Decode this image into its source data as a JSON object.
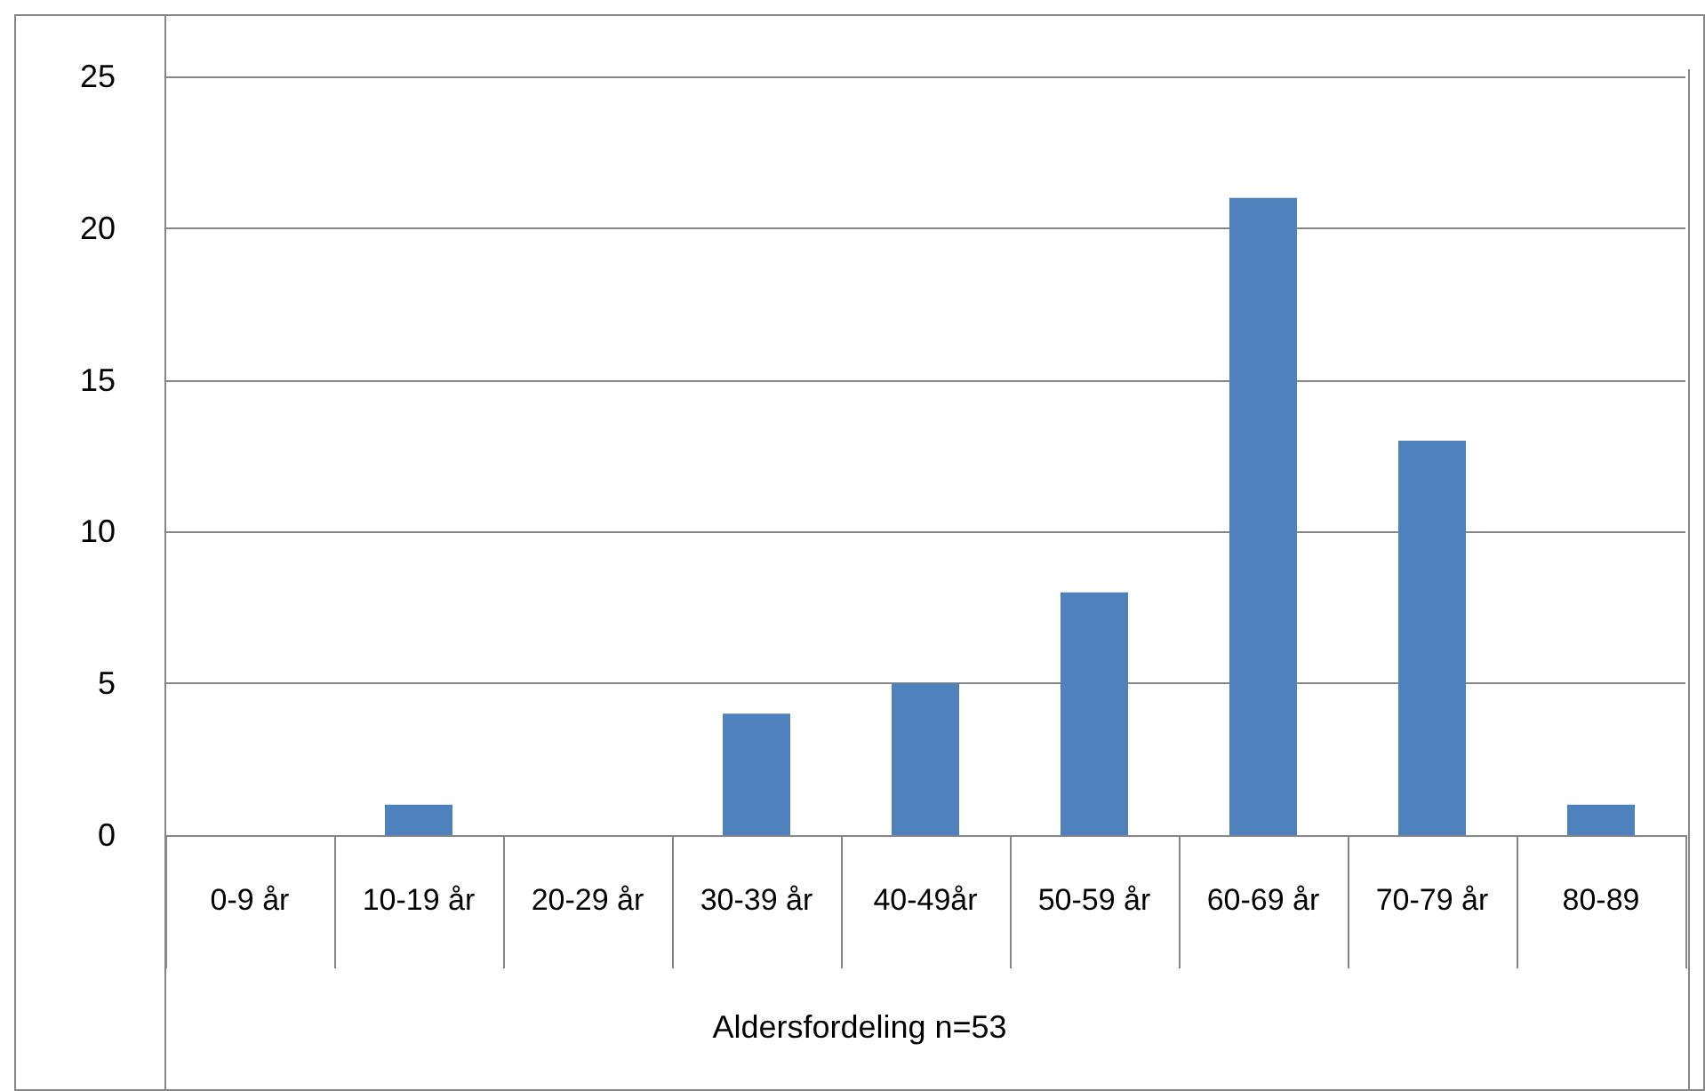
{
  "chart_data": {
    "type": "bar",
    "annotations": [
      "Aldersfordeling n=53"
    ],
    "categories": [
      "0-9 år",
      "10-19 år",
      "20-29 år",
      "30-39 år",
      "40-49år",
      "50-59 år",
      "60-69 år",
      "70-79 år",
      "80-89"
    ],
    "values": [
      0,
      1,
      0,
      4,
      5,
      8,
      21,
      13,
      1
    ],
    "color": "#4f81bd",
    "ylim": [
      0,
      25
    ],
    "yticks": [
      0,
      5,
      10,
      15,
      20,
      25
    ],
    "grid": "y"
  }
}
